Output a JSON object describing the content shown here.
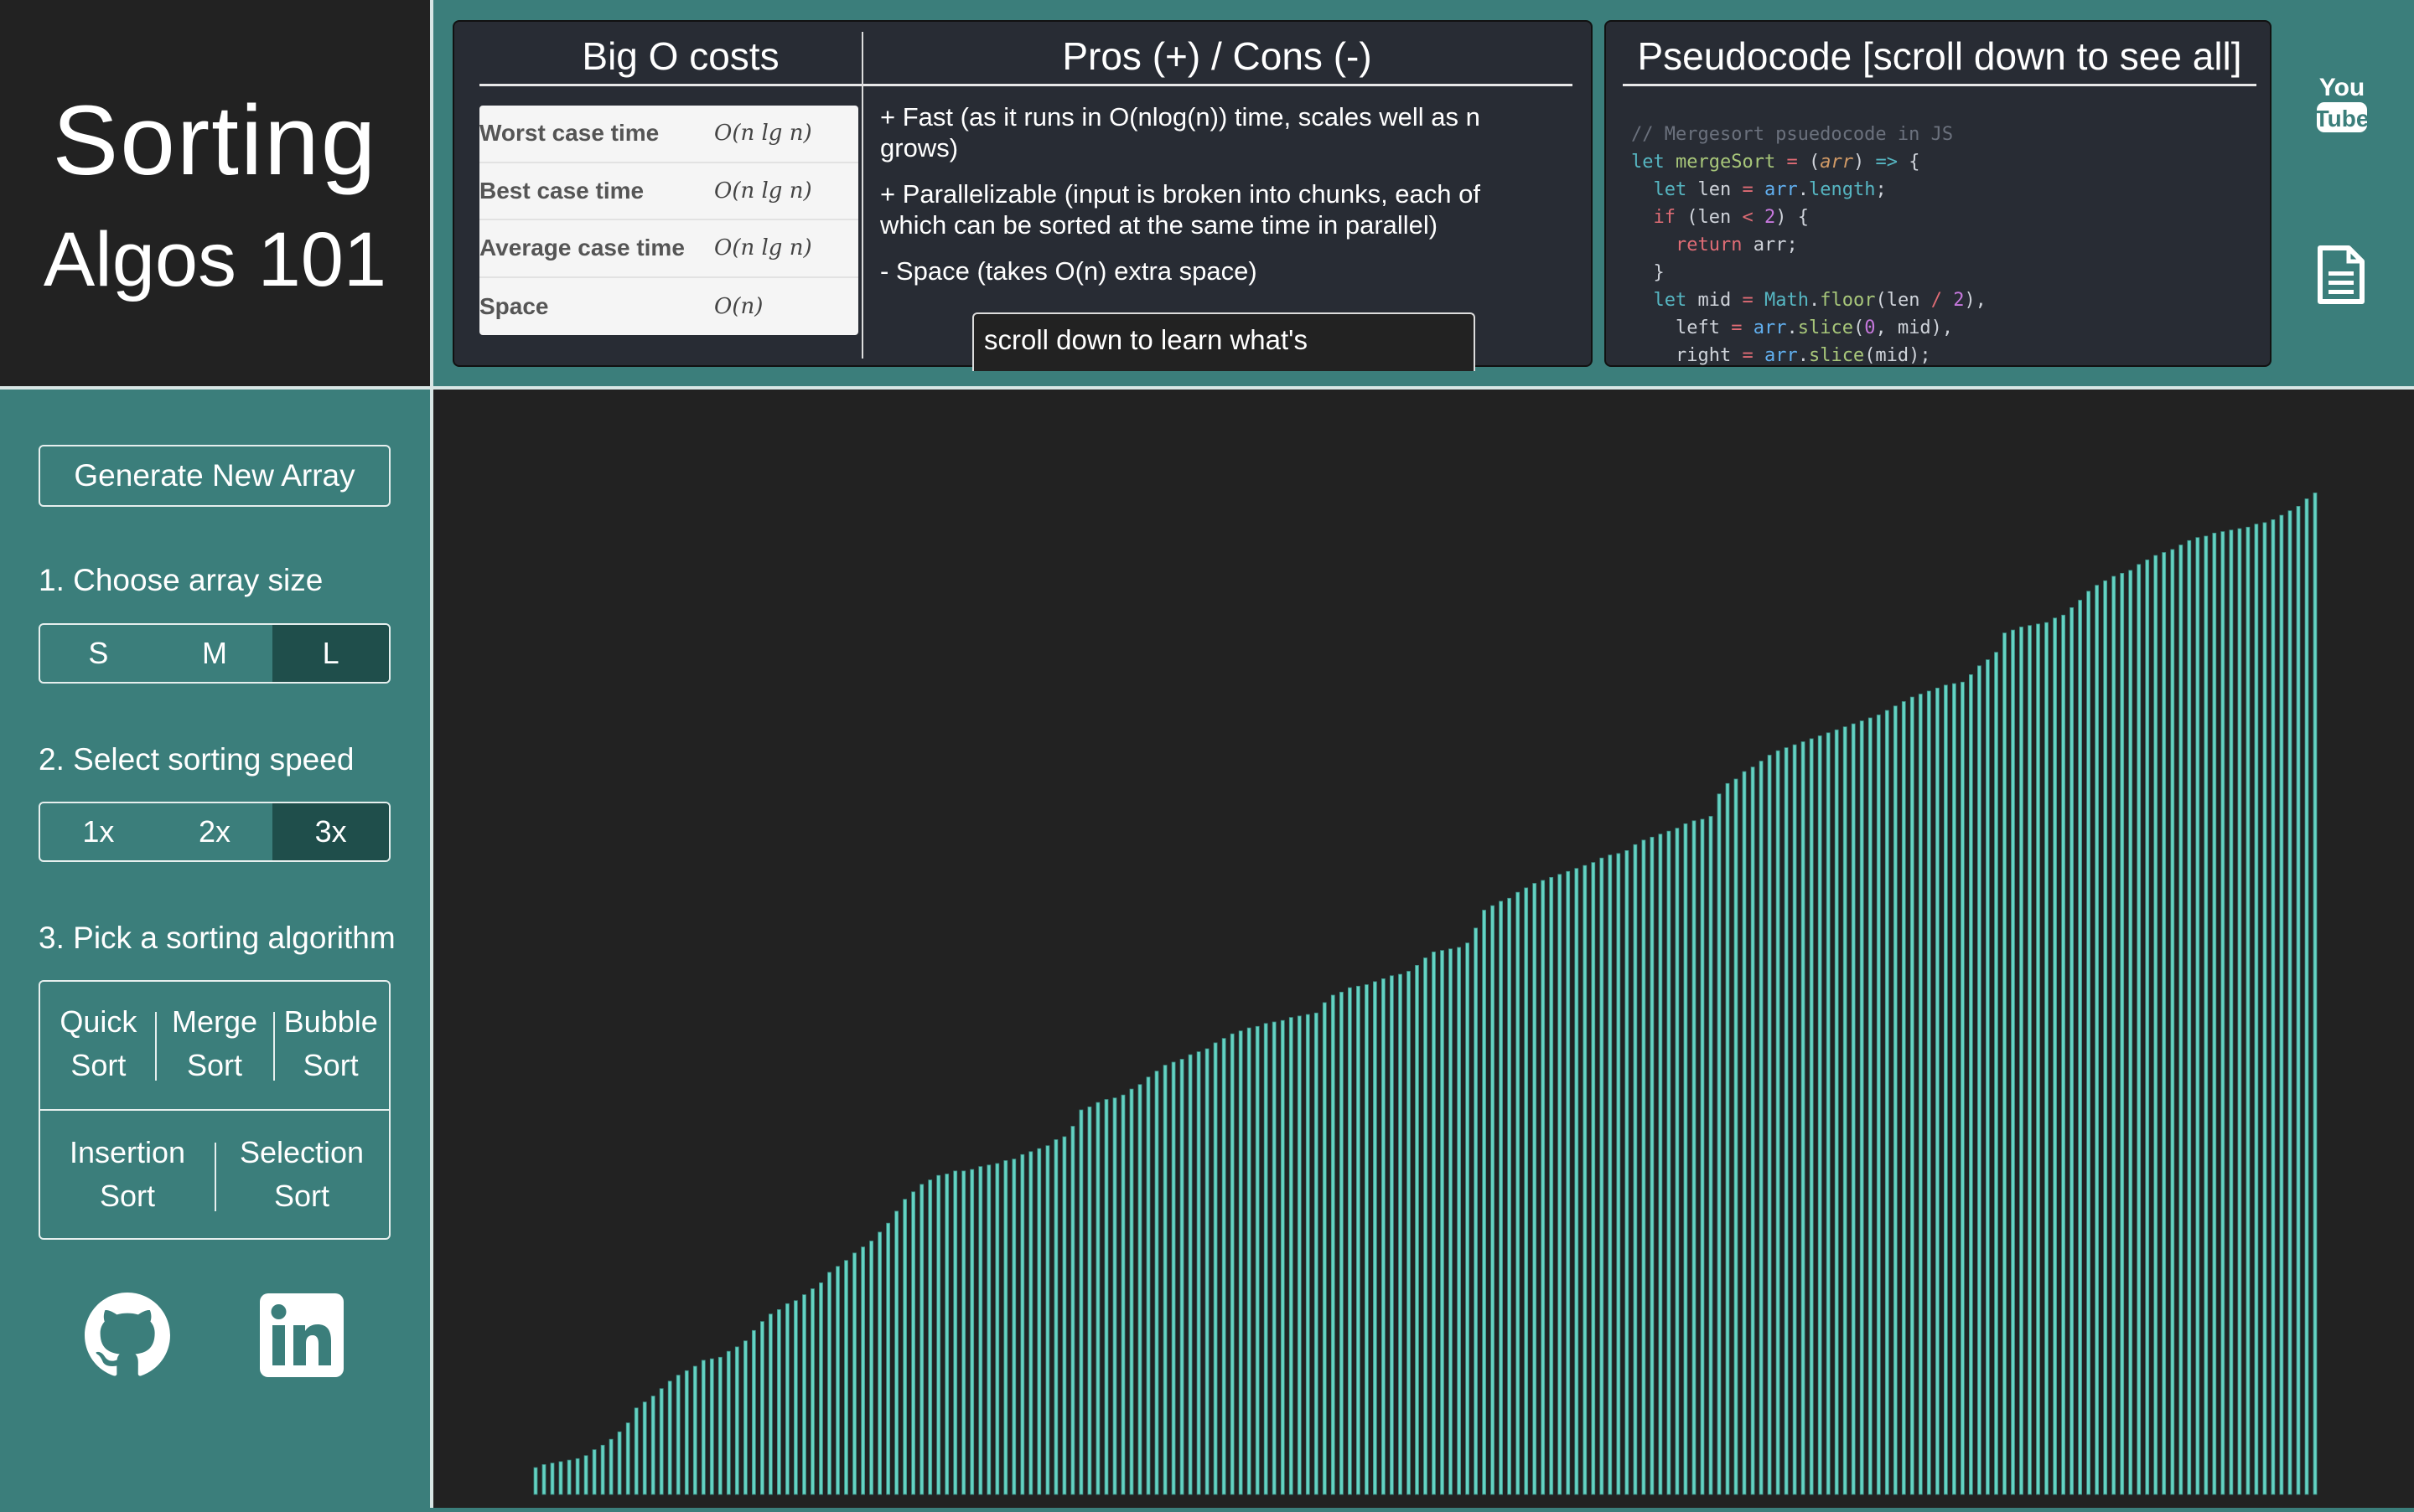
{
  "title": {
    "line1": "Sorting",
    "line2": "Algos 101"
  },
  "bigo": {
    "heading": "Big O costs",
    "rows": [
      {
        "label": "Worst case time",
        "value": "O(n lg n)"
      },
      {
        "label": "Best case time",
        "value": "O(n lg n)"
      },
      {
        "label": "Average case time",
        "value": "O(n lg n)"
      },
      {
        "label": "Space",
        "value": "O(n)"
      }
    ]
  },
  "pros": {
    "heading": "Pros (+) / Cons (-)",
    "items": [
      "+ Fast (as it runs in O(nlog(n)) time, scales well as n grows)",
      "+ Parallelizable (input is broken into chunks, each of which can be sorted at the same time in parallel)",
      "- Space (takes O(n) extra space)"
    ],
    "scroll_note": "scroll down to learn what's"
  },
  "pseudocode": {
    "heading": "Pseudocode [scroll down to see all]"
  },
  "sidebar": {
    "generate": "Generate New Array",
    "size_label": "1. Choose array size",
    "sizes": [
      "S",
      "M",
      "L"
    ],
    "size_selected": "L",
    "speed_label": "2. Select sorting speed",
    "speeds": [
      "1x",
      "2x",
      "3x"
    ],
    "speed_selected": "3x",
    "algo_label": "3. Pick a sorting algorithm",
    "algos": [
      [
        "Quick",
        "Sort"
      ],
      [
        "Merge",
        "Sort"
      ],
      [
        "Bubble",
        "Sort"
      ],
      [
        "Insertion",
        "Sort"
      ],
      [
        "Selection",
        "Sort"
      ]
    ]
  },
  "colors": {
    "teal": "#3b7e7b",
    "bar": "#64d2c2",
    "dark": "#222222"
  },
  "chart_data": {
    "type": "bar",
    "title": "",
    "xlabel": "",
    "ylabel": "",
    "values": [
      18,
      20,
      21,
      22,
      23,
      24,
      26,
      30,
      33,
      37,
      42,
      48,
      58,
      62,
      66,
      71,
      76,
      80,
      83,
      86,
      90,
      91,
      92,
      96,
      99,
      103,
      110,
      116,
      121,
      124,
      128,
      130,
      134,
      138,
      142,
      149,
      153,
      157,
      162,
      166,
      170,
      176,
      182,
      190,
      198,
      203,
      208,
      211,
      214,
      215,
      217,
      217,
      218,
      220,
      221,
      222,
      224,
      225,
      228,
      230,
      232,
      234,
      238,
      240,
      247,
      258,
      260,
      263,
      265,
      266,
      268,
      272,
      275,
      280,
      284,
      288,
      290,
      292,
      295,
      297,
      299,
      303,
      306,
      309,
      311,
      313,
      314,
      316,
      317,
      318,
      320,
      321,
      322,
      323,
      330,
      335,
      337,
      340,
      341,
      342,
      344,
      346,
      348,
      349,
      351,
      355,
      360,
      364,
      365,
      366,
      367,
      370,
      380,
      392,
      395,
      398,
      400,
      404,
      407,
      410,
      412,
      414,
      416,
      418,
      420,
      422,
      424,
      427,
      429,
      430,
      432,
      436,
      439,
      441,
      443,
      445,
      447,
      450,
      452,
      453,
      455,
      470,
      477,
      480,
      485,
      488,
      492,
      496,
      499,
      501,
      503,
      505,
      507,
      509,
      511,
      513,
      515,
      517,
      519,
      521,
      523,
      526,
      529,
      532,
      535,
      537,
      539,
      541,
      543,
      544,
      545,
      550,
      556,
      560,
      565,
      578,
      580,
      582,
      583,
      584,
      585,
      588,
      590,
      595,
      600,
      606,
      610,
      613,
      616,
      618,
      620,
      624,
      627,
      630,
      632,
      634,
      637,
      640,
      642,
      643,
      645,
      646,
      647,
      648,
      649,
      651,
      652,
      654,
      657,
      660,
      663,
      668,
      672
    ],
    "ylim": [
      0,
      700
    ]
  }
}
